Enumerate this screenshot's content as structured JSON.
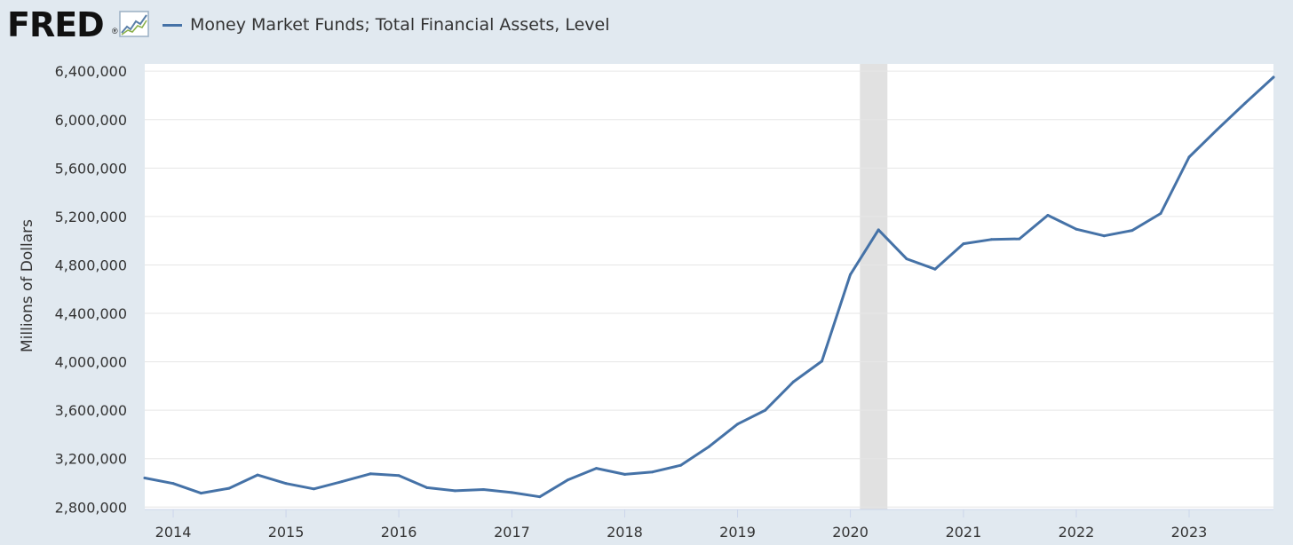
{
  "header": {
    "logo_text": "FRED",
    "logo_mark": "®",
    "logo_icon": "chart-line-icon",
    "legend_label": "Money Market Funds; Total Financial Assets, Level"
  },
  "colors": {
    "background": "#e1e9f0",
    "plot_background": "#ffffff",
    "series": "#4572a7",
    "recession": "#e1e1e1",
    "grid": "#e6e6e6"
  },
  "chart_data": {
    "type": "line",
    "title": "",
    "xlabel": "",
    "ylabel": "Millions of Dollars",
    "ylim": [
      2780000,
      6460000
    ],
    "xlim": [
      "2013-10-01",
      "2023-10-01"
    ],
    "y_ticks": [
      2800000,
      3200000,
      3600000,
      4000000,
      4400000,
      4800000,
      5200000,
      5600000,
      6000000,
      6400000
    ],
    "y_tick_labels": [
      "2,800,000",
      "3,200,000",
      "3,600,000",
      "4,000,000",
      "4,400,000",
      "4,800,000",
      "5,200,000",
      "5,600,000",
      "6,000,000",
      "6,400,000"
    ],
    "x_ticks": [
      "2014-01-01",
      "2015-01-01",
      "2016-01-01",
      "2017-01-01",
      "2018-01-01",
      "2019-01-01",
      "2020-01-01",
      "2021-01-01",
      "2022-01-01",
      "2023-01-01"
    ],
    "x_tick_labels": [
      "2014",
      "2015",
      "2016",
      "2017",
      "2018",
      "2019",
      "2020",
      "2021",
      "2022",
      "2023"
    ],
    "grid": true,
    "legend": "top-left",
    "recession": {
      "start": "2020-02-01",
      "end": "2020-04-30"
    },
    "series": [
      {
        "name": "Money Market Funds; Total Financial Assets, Level",
        "x": [
          "2013-10-01",
          "2014-01-01",
          "2014-04-01",
          "2014-07-01",
          "2014-10-01",
          "2015-01-01",
          "2015-04-01",
          "2015-07-01",
          "2015-10-01",
          "2016-01-01",
          "2016-04-01",
          "2016-07-01",
          "2016-10-01",
          "2017-01-01",
          "2017-04-01",
          "2017-07-01",
          "2017-10-01",
          "2018-01-01",
          "2018-04-01",
          "2018-07-01",
          "2018-10-01",
          "2019-01-01",
          "2019-04-01",
          "2019-07-01",
          "2019-10-01",
          "2020-01-01",
          "2020-04-01",
          "2020-07-01",
          "2020-10-01",
          "2021-01-01",
          "2021-04-01",
          "2021-07-01",
          "2021-10-01",
          "2022-01-01",
          "2022-04-01",
          "2022-07-01",
          "2022-10-01",
          "2023-01-01",
          "2023-04-01",
          "2023-07-01",
          "2023-10-01"
        ],
        "y": [
          3040000,
          2995000,
          2915000,
          2955000,
          3065000,
          2995000,
          2950000,
          3010000,
          3075000,
          3060000,
          2960000,
          2935000,
          2945000,
          2920000,
          2885000,
          3025000,
          3120000,
          3070000,
          3090000,
          3145000,
          3300000,
          3485000,
          3600000,
          3835000,
          4005000,
          4720000,
          5090000,
          4850000,
          4765000,
          4975000,
          5010000,
          5015000,
          5210000,
          5095000,
          5040000,
          5085000,
          5225000,
          5690000,
          5915000,
          6135000,
          6350000
        ]
      }
    ]
  }
}
